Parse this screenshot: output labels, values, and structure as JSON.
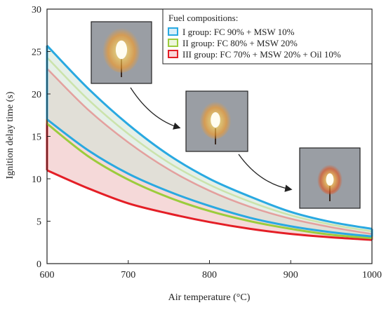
{
  "chart_data": {
    "type": "area",
    "xlabel": "Air temperature (°C)",
    "ylabel": "Ignition delay time (s)",
    "xlim": [
      600,
      1000
    ],
    "ylim": [
      0,
      30
    ],
    "xticks": [
      600,
      700,
      800,
      900,
      1000
    ],
    "yticks": [
      0,
      5,
      10,
      15,
      20,
      25,
      30
    ],
    "grid": false,
    "legend": {
      "title": "Fuel compositions:",
      "placement": "top-right",
      "entries": [
        {
          "label": "I group: FC 90% + MSW 10%",
          "color": "#29a9e1"
        },
        {
          "label": "II group: FC 80% + MSW 20%",
          "color": "#9ccc3c"
        },
        {
          "label": "III group: FC 70% + MSW 20% + Oil 10%",
          "color": "#e41e26"
        }
      ]
    },
    "series": [
      {
        "color": "#29a9e1",
        "upper": {
          "x": [
            600,
            650,
            700,
            750,
            800,
            850,
            900,
            950,
            1000
          ],
          "values": [
            25.7,
            20.7,
            16.4,
            12.8,
            10.0,
            7.9,
            6.1,
            4.9,
            4.1
          ]
        },
        "lower": {
          "x": [
            600,
            650,
            700,
            750,
            800,
            850,
            900,
            950,
            1000
          ],
          "values": [
            17.0,
            13.4,
            10.6,
            8.5,
            6.8,
            5.4,
            4.4,
            3.7,
            3.2
          ]
        }
      },
      {
        "color": "#9ccc3c",
        "upper": {
          "x": [
            600,
            650,
            700,
            750,
            800,
            850,
            900,
            950,
            1000
          ],
          "values": [
            24.3,
            19.4,
            15.3,
            11.9,
            9.3,
            7.3,
            5.7,
            4.6,
            3.8
          ]
        },
        "lower": {
          "x": [
            600,
            650,
            700,
            750,
            800,
            850,
            900,
            950,
            1000
          ],
          "values": [
            16.5,
            12.7,
            9.9,
            7.8,
            6.2,
            5.0,
            4.1,
            3.4,
            3.0
          ]
        }
      },
      {
        "color": "#e41e26",
        "upper": {
          "x": [
            600,
            650,
            700,
            750,
            800,
            850,
            900,
            950,
            1000
          ],
          "values": [
            23.0,
            18.2,
            14.3,
            11.1,
            8.6,
            6.7,
            5.3,
            4.3,
            3.5
          ]
        },
        "lower": {
          "x": [
            600,
            650,
            700,
            750,
            800,
            850,
            900,
            950,
            1000
          ],
          "values": [
            11.0,
            8.9,
            7.1,
            5.9,
            4.9,
            4.1,
            3.5,
            3.1,
            2.8
          ]
        }
      }
    ],
    "insets": [
      {
        "name": "flame-photo-1",
        "points_to": {
          "x": 690,
          "y": 16.5
        }
      },
      {
        "name": "flame-photo-2",
        "points_to": {
          "x": 800,
          "y": 10.0
        }
      },
      {
        "name": "flame-photo-3",
        "points_to": {
          "x": 915,
          "y": 6.0
        }
      }
    ]
  }
}
